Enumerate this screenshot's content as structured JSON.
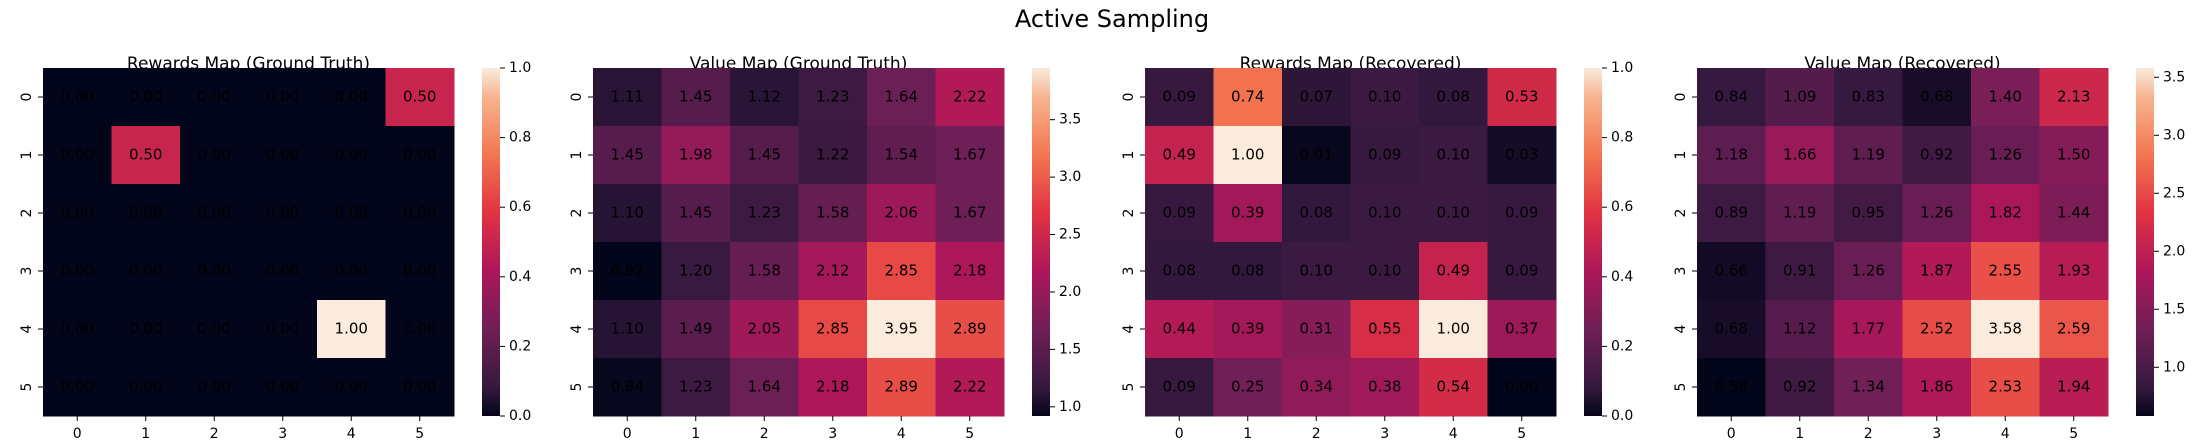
{
  "title": "Active Sampling",
  "chart_data": [
    {
      "type": "heatmap",
      "title": "Rewards Map (Ground Truth)",
      "colormap": "rocket",
      "x_categories": [
        "0",
        "1",
        "2",
        "3",
        "4",
        "5"
      ],
      "y_categories": [
        "0",
        "1",
        "2",
        "3",
        "4",
        "5"
      ],
      "values": [
        [
          0,
          0,
          0,
          0,
          0,
          0.5
        ],
        [
          0,
          0.5,
          0,
          0,
          0,
          0
        ],
        [
          0,
          0,
          0,
          0,
          0,
          0
        ],
        [
          0,
          0,
          0,
          0,
          0,
          0
        ],
        [
          0,
          0,
          0,
          0,
          1,
          0
        ],
        [
          0,
          0,
          0,
          0,
          0,
          0
        ]
      ],
      "value_labels": [
        [
          "0.00",
          "0.00",
          "0.00",
          "0.00",
          "0.00",
          "0.50"
        ],
        [
          "0.00",
          "0.50",
          "0.00",
          "0.00",
          "0.00",
          "0.00"
        ],
        [
          "0.00",
          "0.00",
          "0.00",
          "0.00",
          "0.00",
          "0.00"
        ],
        [
          "0.00",
          "0.00",
          "0.00",
          "0.00",
          "0.00",
          "0.00"
        ],
        [
          "0.00",
          "0.00",
          "0.00",
          "0.00",
          "1.00",
          "0.00"
        ],
        [
          "0.00",
          "0.00",
          "0.00",
          "0.00",
          "0.00",
          "0.00"
        ]
      ],
      "clim": [
        0,
        1
      ],
      "cticks": [
        {
          "value": 0,
          "label": "0.0"
        },
        {
          "value": 0.2,
          "label": "0.2"
        },
        {
          "value": 0.4,
          "label": "0.4"
        },
        {
          "value": 0.6,
          "label": "0.6"
        },
        {
          "value": 0.8,
          "label": "0.8"
        },
        {
          "value": 1,
          "label": "1.0"
        }
      ]
    },
    {
      "type": "heatmap",
      "title": "Value Map (Ground Truth)",
      "colormap": "rocket",
      "x_categories": [
        "0",
        "1",
        "2",
        "3",
        "4",
        "5"
      ],
      "y_categories": [
        "0",
        "1",
        "2",
        "3",
        "4",
        "5"
      ],
      "values": [
        [
          1.11,
          1.45,
          1.12,
          1.23,
          1.64,
          2.22
        ],
        [
          1.45,
          1.98,
          1.45,
          1.22,
          1.54,
          1.67
        ],
        [
          1.1,
          1.45,
          1.23,
          1.58,
          2.06,
          1.67
        ],
        [
          0.92,
          1.2,
          1.58,
          2.12,
          2.85,
          2.18
        ],
        [
          1.1,
          1.49,
          2.05,
          2.85,
          3.95,
          2.89
        ],
        [
          0.94,
          1.23,
          1.64,
          2.18,
          2.89,
          2.22
        ]
      ],
      "value_labels": [
        [
          "1.11",
          "1.45",
          "1.12",
          "1.23",
          "1.64",
          "2.22"
        ],
        [
          "1.45",
          "1.98",
          "1.45",
          "1.22",
          "1.54",
          "1.67"
        ],
        [
          "1.10",
          "1.45",
          "1.23",
          "1.58",
          "2.06",
          "1.67"
        ],
        [
          "0.92",
          "1.20",
          "1.58",
          "2.12",
          "2.85",
          "2.18"
        ],
        [
          "1.10",
          "1.49",
          "2.05",
          "2.85",
          "3.95",
          "2.89"
        ],
        [
          "0.94",
          "1.23",
          "1.64",
          "2.18",
          "2.89",
          "2.22"
        ]
      ],
      "clim": [
        0.92,
        3.95
      ],
      "cticks": [
        {
          "value": 1,
          "label": "1.0"
        },
        {
          "value": 1.5,
          "label": "1.5"
        },
        {
          "value": 2,
          "label": "2.0"
        },
        {
          "value": 2.5,
          "label": "2.5"
        },
        {
          "value": 3,
          "label": "3.0"
        },
        {
          "value": 3.5,
          "label": "3.5"
        }
      ]
    },
    {
      "type": "heatmap",
      "title": "Rewards Map (Recovered)",
      "colormap": "rocket",
      "x_categories": [
        "0",
        "1",
        "2",
        "3",
        "4",
        "5"
      ],
      "y_categories": [
        "0",
        "1",
        "2",
        "3",
        "4",
        "5"
      ],
      "values": [
        [
          0.09,
          0.74,
          0.07,
          0.1,
          0.08,
          0.53
        ],
        [
          0.49,
          1.0,
          0.01,
          0.09,
          0.1,
          0.03
        ],
        [
          0.09,
          0.39,
          0.08,
          0.1,
          0.1,
          0.09
        ],
        [
          0.08,
          0.08,
          0.1,
          0.1,
          0.49,
          0.09
        ],
        [
          0.44,
          0.39,
          0.31,
          0.55,
          1.0,
          0.37
        ],
        [
          0.09,
          0.25,
          0.34,
          0.38,
          0.54,
          0.0
        ]
      ],
      "value_labels": [
        [
          "0.09",
          "0.74",
          "0.07",
          "0.10",
          "0.08",
          "0.53"
        ],
        [
          "0.49",
          "1.00",
          "0.01",
          "0.09",
          "0.10",
          "0.03"
        ],
        [
          "0.09",
          "0.39",
          "0.08",
          "0.10",
          "0.10",
          "0.09"
        ],
        [
          "0.08",
          "0.08",
          "0.10",
          "0.10",
          "0.49",
          "0.09"
        ],
        [
          "0.44",
          "0.39",
          "0.31",
          "0.55",
          "1.00",
          "0.37"
        ],
        [
          "0.09",
          "0.25",
          "0.34",
          "0.38",
          "0.54",
          "0.00"
        ]
      ],
      "clim": [
        0,
        1
      ],
      "cticks": [
        {
          "value": 0,
          "label": "0.0"
        },
        {
          "value": 0.2,
          "label": "0.2"
        },
        {
          "value": 0.4,
          "label": "0.4"
        },
        {
          "value": 0.6,
          "label": "0.6"
        },
        {
          "value": 0.8,
          "label": "0.8"
        },
        {
          "value": 1,
          "label": "1.0"
        }
      ]
    },
    {
      "type": "heatmap",
      "title": "Value Map (Recovered)",
      "colormap": "rocket",
      "x_categories": [
        "0",
        "1",
        "2",
        "3",
        "4",
        "5"
      ],
      "y_categories": [
        "0",
        "1",
        "2",
        "3",
        "4",
        "5"
      ],
      "values": [
        [
          0.84,
          1.09,
          0.83,
          0.68,
          1.4,
          2.13
        ],
        [
          1.18,
          1.66,
          1.19,
          0.92,
          1.26,
          1.5
        ],
        [
          0.89,
          1.19,
          0.95,
          1.26,
          1.82,
          1.44
        ],
        [
          0.66,
          0.91,
          1.26,
          1.87,
          2.55,
          1.93
        ],
        [
          0.68,
          1.12,
          1.77,
          2.52,
          3.58,
          2.59
        ],
        [
          0.58,
          0.92,
          1.34,
          1.86,
          2.53,
          1.94
        ]
      ],
      "value_labels": [
        [
          "0.84",
          "1.09",
          "0.83",
          "0.68",
          "1.40",
          "2.13"
        ],
        [
          "1.18",
          "1.66",
          "1.19",
          "0.92",
          "1.26",
          "1.50"
        ],
        [
          "0.89",
          "1.19",
          "0.95",
          "1.26",
          "1.82",
          "1.44"
        ],
        [
          "0.66",
          "0.91",
          "1.26",
          "1.87",
          "2.55",
          "1.93"
        ],
        [
          "0.68",
          "1.12",
          "1.77",
          "2.52",
          "3.58",
          "2.59"
        ],
        [
          "0.58",
          "0.92",
          "1.34",
          "1.86",
          "2.53",
          "1.94"
        ]
      ],
      "clim": [
        0.58,
        3.58
      ],
      "cticks": [
        {
          "value": 1,
          "label": "1.0"
        },
        {
          "value": 1.5,
          "label": "1.5"
        },
        {
          "value": 2,
          "label": "2.0"
        },
        {
          "value": 2.5,
          "label": "2.5"
        },
        {
          "value": 3,
          "label": "3.0"
        },
        {
          "value": 3.5,
          "label": "3.5"
        }
      ]
    }
  ]
}
